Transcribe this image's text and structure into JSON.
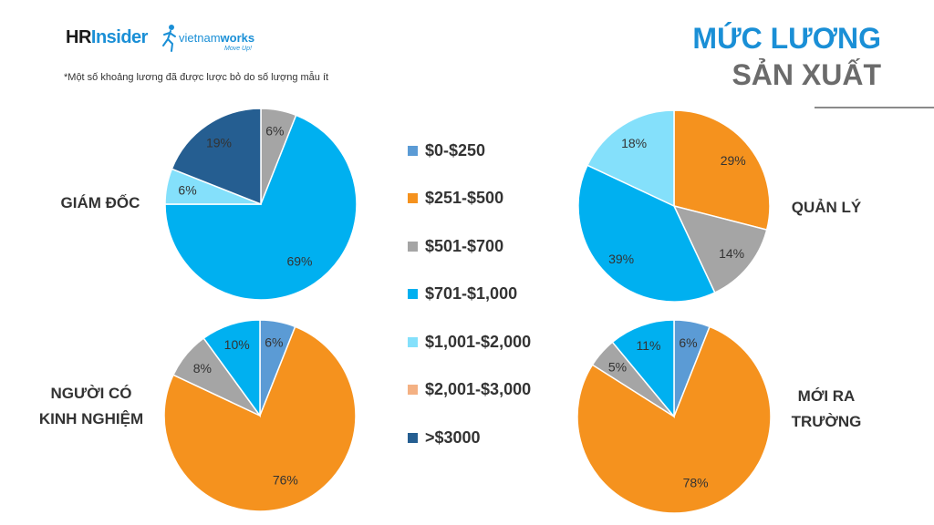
{
  "header": {
    "logo_hr": "HR",
    "logo_insider": "Insider",
    "logo_vn_name_a": "vietnam",
    "logo_vn_name_b": "works",
    "logo_vn_tagline": "Move Up!",
    "note": "*Một số khoảng lương đã được lược bỏ do số lượng mẫu ít",
    "title_line1": "MỨC LƯƠNG",
    "title_line2": "SẢN XUẤT"
  },
  "chart_data": {
    "type": "pie",
    "legend": {
      "placement": "center",
      "items": [
        {
          "label": "$0-$250",
          "color": "#5b9bd5"
        },
        {
          "label": "$251-$500",
          "color": "#f5921e"
        },
        {
          "label": "$501-$700",
          "color": "#a5a5a5"
        },
        {
          "label": "$701-$1,000",
          "color": "#00b0f0"
        },
        {
          "label": "$1,001-$2,000",
          "color": "#84e0fb"
        },
        {
          "label": "$2,001-$3,000",
          "color": "#f4b183"
        },
        {
          "label": ">$3000",
          "color": "#255e91"
        }
      ]
    },
    "charts": [
      {
        "title": "GIÁM ĐỐC",
        "slices": [
          {
            "category": "$501-$700",
            "value": 6,
            "label": "6%"
          },
          {
            "category": "$701-$1,000",
            "value": 69,
            "label": "69%"
          },
          {
            "category": "$1,001-$2,000",
            "value": 6,
            "label": "6%"
          },
          {
            "category": ">$3000",
            "value": 19,
            "label": "19%"
          }
        ]
      },
      {
        "title": "QUẢN LÝ",
        "slices": [
          {
            "category": "$251-$500",
            "value": 29,
            "label": "29%"
          },
          {
            "category": "$501-$700",
            "value": 14,
            "label": "14%"
          },
          {
            "category": "$701-$1,000",
            "value": 39,
            "label": "39%"
          },
          {
            "category": "$1,001-$2,000",
            "value": 18,
            "label": "18%"
          }
        ]
      },
      {
        "title": "NGƯỜI CÓ KINH NGHIỆM",
        "slices": [
          {
            "category": "$0-$250",
            "value": 6,
            "label": "6%"
          },
          {
            "category": "$251-$500",
            "value": 76,
            "label": "76%"
          },
          {
            "category": "$501-$700",
            "value": 8,
            "label": "8%"
          },
          {
            "category": "$701-$1,000",
            "value": 10,
            "label": "10%"
          }
        ]
      },
      {
        "title": "MỚI RA TRƯỜNG",
        "slices": [
          {
            "category": "$0-$250",
            "value": 6,
            "label": "6%"
          },
          {
            "category": "$251-$500",
            "value": 78,
            "label": "78%"
          },
          {
            "category": "$501-$700",
            "value": 5,
            "label": "5%"
          },
          {
            "category": "$701-$1,000",
            "value": 11,
            "label": "11%"
          }
        ]
      }
    ]
  }
}
